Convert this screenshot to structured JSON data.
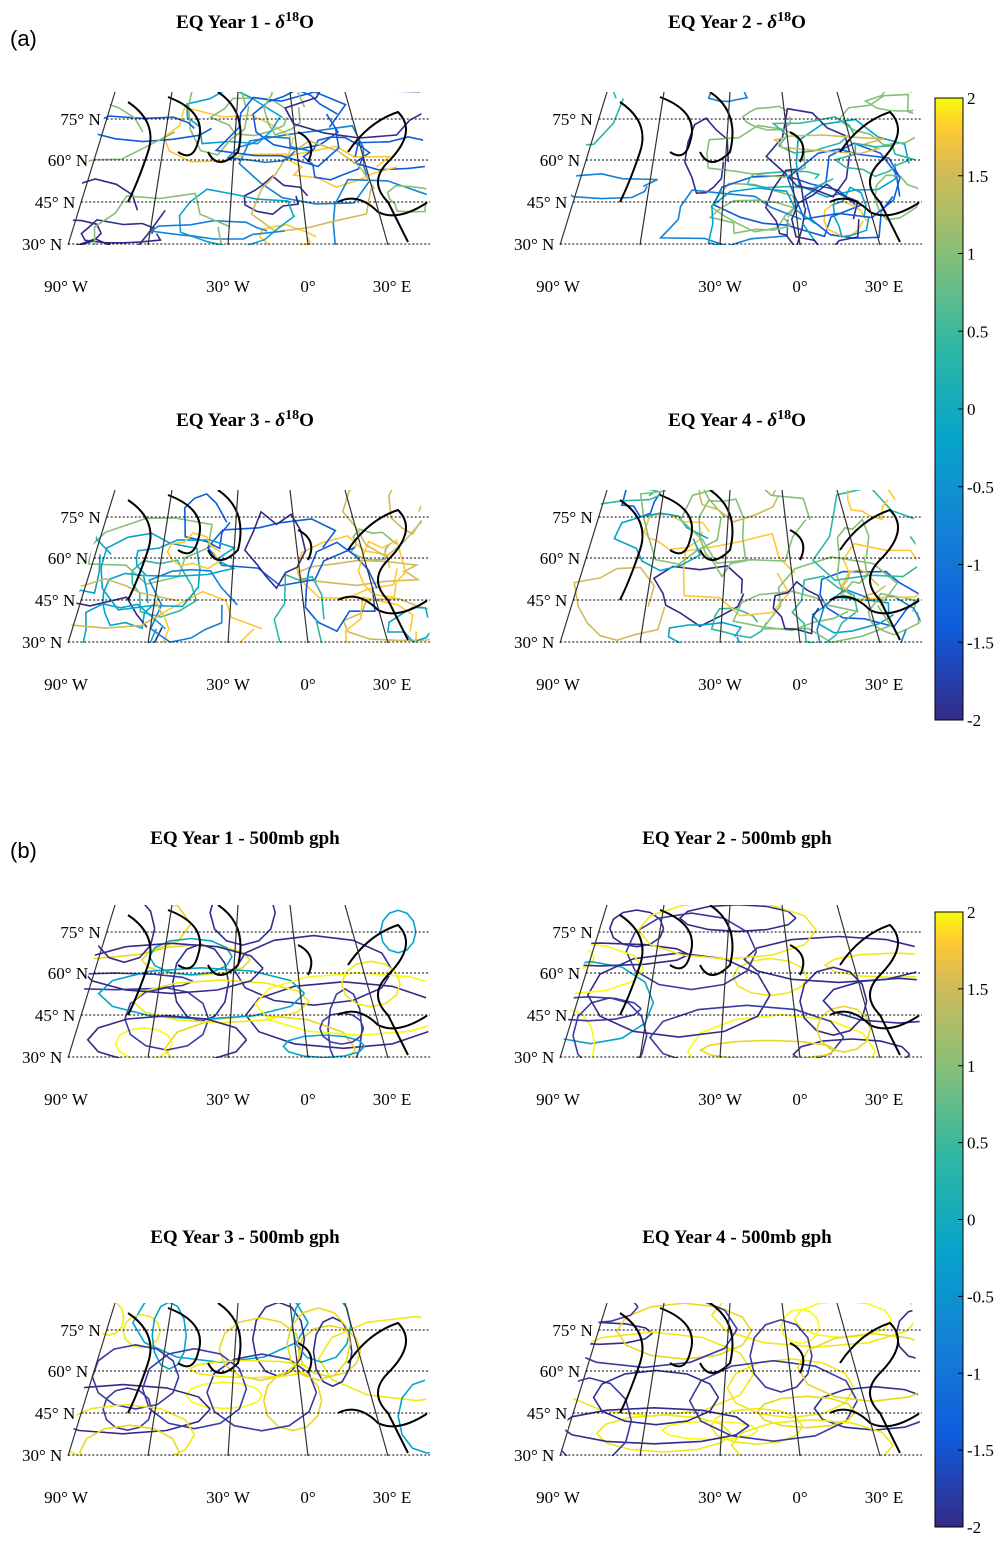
{
  "figure_labels": [
    "(a)",
    "(b)"
  ],
  "panels": [
    {
      "title": [
        "EQ Year 1 - ",
        "δ",
        "18",
        "O"
      ]
    },
    {
      "title": [
        "EQ Year 2 - ",
        "δ",
        "18",
        "O"
      ]
    },
    {
      "title": [
        "EQ Year 3 - ",
        "δ",
        "18",
        "O"
      ]
    },
    {
      "title": [
        "EQ Year 4 - ",
        "δ",
        "18",
        "O"
      ]
    },
    {
      "title": [
        "EQ Year 1 - 500mb gph"
      ]
    },
    {
      "title": [
        "EQ Year 2 - 500mb gph"
      ]
    },
    {
      "title": [
        "EQ Year 3 - 500mb gph"
      ]
    },
    {
      "title": [
        "EQ Year 4 - 500mb gph"
      ]
    }
  ],
  "lat_labels": [
    "75° N",
    "60° N",
    "45° N",
    "30° N"
  ],
  "lon_labels": [
    "90° W",
    "30° W",
    "0°",
    "30° E"
  ],
  "colorbars": [
    {
      "ylim": [
        -2,
        2
      ],
      "yticks": [
        -2,
        -1.5,
        -1,
        -0.5,
        0,
        0.5,
        1,
        1.5,
        2
      ]
    },
    {
      "ylim": [
        -2,
        2
      ],
      "yticks": [
        -2,
        -1.5,
        -1,
        -0.5,
        0,
        0.5,
        1,
        1.5,
        2
      ]
    }
  ]
}
